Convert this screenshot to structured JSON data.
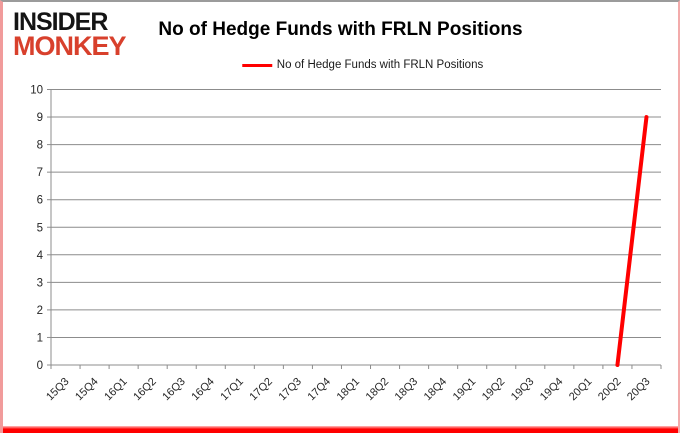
{
  "logo": {
    "line1": "INSIDER",
    "line2": "MONKEY",
    "line1_color": "#141414",
    "line2_color": "#d8402c"
  },
  "header": {
    "title": "No of Hedge Funds with FRLN Positions"
  },
  "legend": {
    "label": "No of Hedge Funds with FRLN Positions",
    "swatch_color": "#ff0000"
  },
  "colors": {
    "series_red": "#ff0000",
    "grid_gray": "#8c8c8c",
    "axis_gray": "#8c8c8c",
    "tick_label": "#262626",
    "frame_pink": "#f19b9b",
    "bottom_bar_red": "#ff0000"
  },
  "chart_data": {
    "type": "line",
    "title": "No of Hedge Funds with FRLN Positions",
    "legend_entries": [
      "No of Hedge Funds with FRLN Positions"
    ],
    "legend_position": "top",
    "categories": [
      "15Q3",
      "15Q4",
      "16Q1",
      "16Q2",
      "16Q3",
      "16Q4",
      "17Q1",
      "17Q2",
      "17Q3",
      "17Q4",
      "18Q1",
      "18Q2",
      "18Q3",
      "18Q4",
      "19Q1",
      "19Q2",
      "19Q3",
      "19Q4",
      "20Q1",
      "20Q2",
      "20Q3"
    ],
    "series": [
      {
        "name": "No of Hedge Funds with FRLN Positions",
        "color": "#ff0000",
        "values": [
          null,
          null,
          null,
          null,
          null,
          null,
          null,
          null,
          null,
          null,
          null,
          null,
          null,
          null,
          null,
          null,
          null,
          null,
          null,
          0,
          9
        ]
      }
    ],
    "xlabel": "",
    "ylabel": "",
    "ylim": [
      0,
      10
    ],
    "y_tick_step": 1,
    "x_tick_rotation": -45,
    "grid": "horizontal"
  }
}
